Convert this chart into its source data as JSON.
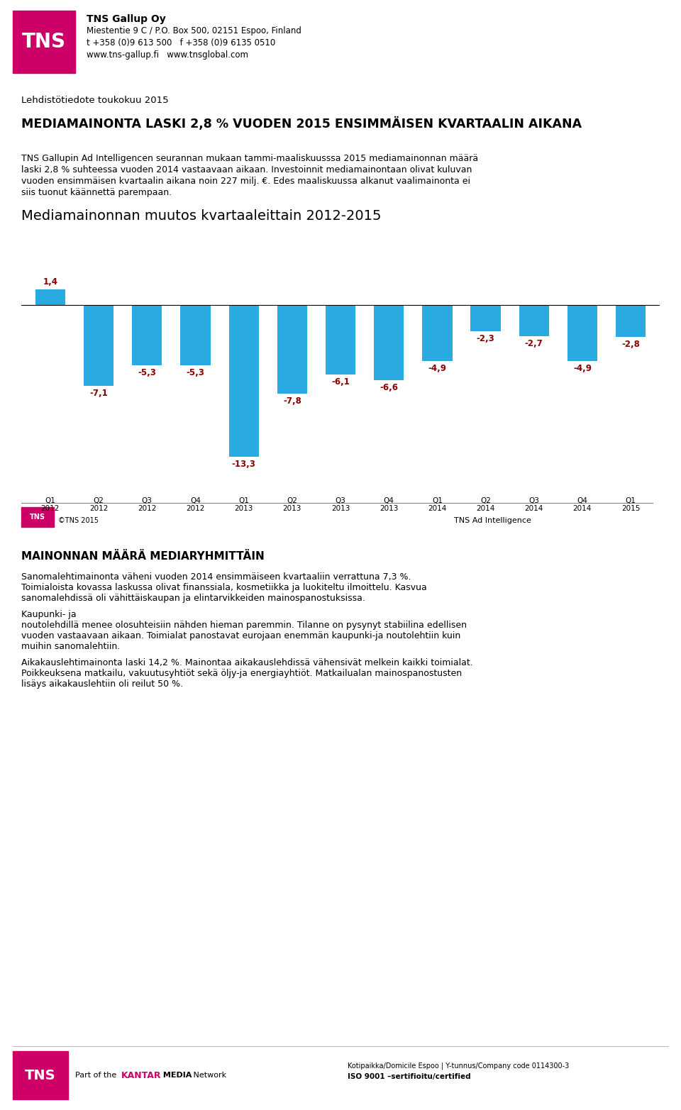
{
  "header_company": "TNS Gallup Oy",
  "header_address": "Miestentie 9 C / P.O. Box 500, 02151 Espoo, Finland",
  "header_tel": "t +358 (0)9 613 500   f +358 (0)9 6135 0510",
  "header_web": "www.tns-gallup.fi   www.tnsglobal.com",
  "press_release_label": "Lehdistötiedote toukokuu 2015",
  "main_title": "MEDIAMAINONTA LASKI 2,8 % VUODEN 2015 ENSIMMÄISEN KVARTAALIN AIKANA",
  "intro_line1": "TNS Gallupin Ad Intelligencen seurannan mukaan tammi-maaliskuusssa 2015 mediamainonnan määrä",
  "intro_line2": "laski 2,8 % suhteessa vuoden 2014 vastaavaan aikaan. Investoinnit mediamainontaan olivat kuluvan",
  "intro_line3": "vuoden ensimmäisen kvartaalin aikana noin 227 milj. €. Edes maaliskuussa alkanut vaalimainonta ei",
  "intro_line4": "siis tuonut käännettä parempaan.",
  "chart_title": "Mediamainonnan muutos kvartaaleittain 2012-2015",
  "categories": [
    "Q1\n2012",
    "Q2\n2012",
    "Q3\n2012",
    "Q4\n2012",
    "Q1\n2013",
    "Q2\n2013",
    "Q3\n2013",
    "Q4\n2013",
    "Q1\n2014",
    "Q2\n2014",
    "Q3\n2014",
    "Q4\n2014",
    "Q1\n2015"
  ],
  "values": [
    1.4,
    -7.1,
    -5.3,
    -5.3,
    -13.3,
    -7.8,
    -6.1,
    -6.6,
    -4.9,
    -2.3,
    -2.7,
    -4.9,
    -2.8
  ],
  "bar_color": "#29ABE2",
  "value_color": "#8B0000",
  "footer_copyright": "©TNS 2015",
  "footer_source": "TNS Ad Intelligence",
  "section2_title": "MAINONNAN MÄÄRÄ MEDIARYHMITTÄIN",
  "section2_para1a": "Sanomalehtimainonta väheni vuoden 2014 ensimmäiseen kvartaaliin verrattuna 7,3 %.",
  "section2_para1b": "Toimialoista kovassa laskussa olivat finanssiala, kosmetiikka ja luokiteltu ilmoittelu. Kasvua",
  "section2_para1c": "sanomalehdissä oli vähittäiskaupan ja elintarvikkeiden mainospanostuksissa.",
  "section2_para2a": "Kaupunki- ja",
  "section2_para2b": "noutolehdillä menee olosuhteisiin nähden hieman paremmin. Tilanne on pysynyt stabiilina edellisen",
  "section2_para2c": "vuoden vastaavaan aikaan. Toimialat panostavat eurojaan enemmän kaupunki-ja noutolehtiin kuin",
  "section2_para2d": "muihin sanomalehtiin.",
  "section2_para3a": "Aikakauslehtimainonta laski 14,2 %. Mainontaa aikakauslehdissä vähensivät melkein kaikki toimialat.",
  "section2_para3b": "Poikkeuksena matkailu, vakuutusyhtiöt sekä öljy-ja energiayhtiöt. Matkailualan mainospanostusten",
  "section2_para3c": "lisäys aikakauslehtiin oli reilut 50 %.",
  "footer_domicile": "Kotipaikka/Domicile Espoo | Y-tunnus/Company code 0114300-3",
  "footer_iso": "ISO 9001 –sertifioitu/certified",
  "tns_color": "#CC0066",
  "kantar_color": "#CC0066"
}
